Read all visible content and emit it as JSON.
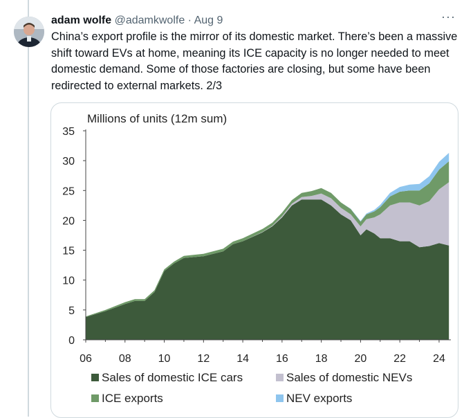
{
  "tweet": {
    "author_name": "adam wolfe",
    "author_handle": "@adamkwolfe",
    "separator": "·",
    "date": "Aug 9",
    "more_icon": "more-dots-icon",
    "text": "China’s export profile is the mirror of its domestic market. There’s been a massive shift toward EVs at home, meaning its ICE capacity is no longer needed to meet domestic demand. Some of those factories are closing, but some have been redirected to external markets. 2/3"
  },
  "colors": {
    "ice_domestic": "#3d5a3b",
    "nev_domestic": "#c3c0cf",
    "ice_exports": "#6f9a68",
    "nev_exports": "#8ec5ee"
  },
  "chart_data": {
    "type": "area",
    "stacked": true,
    "title": "Millions of units (12m sum)",
    "xlabel": "",
    "ylabel": "",
    "x_tick_labels": [
      "06",
      "08",
      "10",
      "12",
      "14",
      "16",
      "18",
      "20",
      "22",
      "24"
    ],
    "y_tick_labels": [
      "0",
      "5",
      "10",
      "15",
      "20",
      "25",
      "30",
      "35"
    ],
    "xlim": [
      2006,
      2024.6
    ],
    "ylim": [
      0,
      35
    ],
    "legend_position": "bottom",
    "x": [
      2006.0,
      2007.0,
      2008.0,
      2008.5,
      2009.0,
      2009.5,
      2010.0,
      2010.5,
      2011.0,
      2012.0,
      2013.0,
      2013.5,
      2014.0,
      2015.0,
      2015.5,
      2016.0,
      2016.5,
      2017.0,
      2017.5,
      2018.0,
      2018.5,
      2019.0,
      2019.5,
      2020.0,
      2020.3,
      2020.7,
      2021.0,
      2021.5,
      2022.0,
      2022.5,
      2023.0,
      2023.5,
      2024.0,
      2024.5
    ],
    "series": [
      {
        "name": "Sales of domestic ICE cars",
        "values": [
          3.8,
          4.8,
          6.0,
          6.5,
          6.5,
          8.0,
          11.5,
          12.8,
          13.7,
          14.0,
          14.8,
          16.0,
          16.5,
          18.0,
          19.0,
          20.5,
          22.5,
          23.5,
          23.5,
          23.5,
          22.5,
          21.0,
          20.0,
          17.5,
          18.5,
          17.8,
          17.0,
          17.0,
          16.5,
          16.5,
          15.5,
          15.7,
          16.2,
          15.8
        ]
      },
      {
        "name": "Sales of domestic NEVs",
        "values": [
          0.0,
          0.0,
          0.0,
          0.0,
          0.0,
          0.0,
          0.0,
          0.0,
          0.0,
          0.0,
          0.0,
          0.0,
          0.0,
          0.05,
          0.1,
          0.2,
          0.3,
          0.4,
          0.6,
          1.0,
          1.2,
          1.1,
          1.0,
          1.5,
          1.7,
          2.7,
          4.0,
          5.5,
          6.5,
          6.5,
          7.0,
          7.5,
          9.0,
          10.6
        ]
      },
      {
        "name": "ICE exports",
        "values": [
          0.1,
          0.2,
          0.3,
          0.3,
          0.3,
          0.3,
          0.3,
          0.3,
          0.35,
          0.4,
          0.45,
          0.45,
          0.5,
          0.5,
          0.5,
          0.6,
          0.6,
          0.7,
          0.8,
          0.9,
          0.9,
          0.9,
          0.9,
          0.8,
          0.8,
          1.0,
          1.2,
          1.5,
          1.8,
          2.0,
          2.5,
          3.0,
          3.3,
          3.5
        ]
      },
      {
        "name": "NEV exports",
        "values": [
          0.0,
          0.0,
          0.0,
          0.0,
          0.0,
          0.0,
          0.0,
          0.0,
          0.0,
          0.0,
          0.0,
          0.0,
          0.0,
          0.0,
          0.0,
          0.0,
          0.0,
          0.0,
          0.0,
          0.0,
          0.0,
          0.0,
          0.05,
          0.1,
          0.15,
          0.25,
          0.4,
          0.6,
          0.8,
          1.0,
          1.1,
          1.2,
          1.3,
          1.4
        ]
      }
    ]
  }
}
